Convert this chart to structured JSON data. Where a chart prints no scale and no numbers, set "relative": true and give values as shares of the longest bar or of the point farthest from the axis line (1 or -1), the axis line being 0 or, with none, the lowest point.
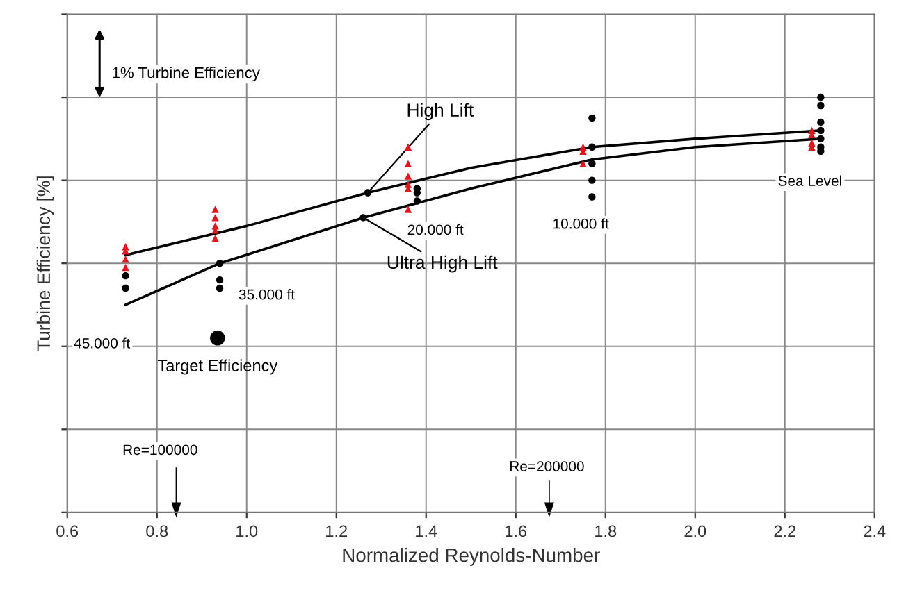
{
  "chart_data": {
    "type": "scatter",
    "relative": true,
    "xlabel": "Normalized Reynolds-Number",
    "ylabel": "Turbine Efficiency [%]",
    "xlim": [
      0.6,
      2.4
    ],
    "xticks": [
      {
        "value": 0.6,
        "label": "0.6"
      },
      {
        "value": 0.8,
        "label": "0.8"
      },
      {
        "value": 1.0,
        "label": "1.0"
      },
      {
        "value": 1.2,
        "label": "1.2"
      },
      {
        "value": 1.4,
        "label": "1.4"
      },
      {
        "value": 1.6,
        "label": "1.6"
      },
      {
        "value": 1.8,
        "label": "1.8"
      },
      {
        "value": 2.0,
        "label": "2.0"
      },
      {
        "value": 2.2,
        "label": "2.2"
      },
      {
        "value": 2.4,
        "label": "2.4"
      }
    ],
    "grid": true,
    "tick_labels": "x",
    "series": [
      {
        "type": "line",
        "name": "High Lift",
        "color": "#000000",
        "marker": "none",
        "x": [
          0.73,
          1.0,
          1.27,
          1.5,
          1.77,
          2.0,
          2.28
        ],
        "values": [
          0.62,
          0.69,
          0.77,
          0.83,
          0.88,
          0.9,
          0.92
        ]
      },
      {
        "type": "line",
        "name": "Ultra High Lift",
        "color": "#000000",
        "marker": "none",
        "x": [
          0.73,
          0.94,
          1.26,
          1.5,
          1.77,
          2.0,
          2.28
        ],
        "values": [
          0.5,
          0.6,
          0.71,
          0.78,
          0.85,
          0.88,
          0.9
        ]
      },
      {
        "color": "#e8141b",
        "marker": "triangle",
        "x": [
          0.73,
          0.73,
          0.73,
          0.73,
          0.93,
          0.93,
          0.93,
          0.93,
          0.93,
          1.36,
          1.36,
          1.36,
          1.36,
          1.36,
          1.36,
          1.75,
          1.75,
          1.75,
          2.26,
          2.26,
          2.26,
          2.26
        ],
        "values": [
          0.64,
          0.63,
          0.61,
          0.59,
          0.73,
          0.71,
          0.69,
          0.68,
          0.66,
          0.88,
          0.84,
          0.81,
          0.79,
          0.78,
          0.73,
          0.88,
          0.87,
          0.84,
          0.92,
          0.91,
          0.89,
          0.88
        ]
      },
      {
        "color": "#000000",
        "marker": "circle",
        "x": [
          0.73,
          0.73,
          0.94,
          0.94,
          0.94,
          1.27,
          1.26,
          1.38,
          1.38,
          1.38,
          1.77,
          1.77,
          1.77,
          1.77,
          1.77,
          2.28,
          2.28,
          2.28,
          2.28,
          2.28,
          2.28,
          2.28
        ],
        "values": [
          0.57,
          0.54,
          0.6,
          0.56,
          0.54,
          0.77,
          0.71,
          0.78,
          0.77,
          0.75,
          0.95,
          0.88,
          0.84,
          0.8,
          0.76,
          1.0,
          0.98,
          0.94,
          0.92,
          0.9,
          0.88,
          0.87
        ]
      },
      {
        "name": "Target Efficiency",
        "color": "#000000",
        "marker": "circle",
        "x": [
          0.935
        ],
        "values": [
          0.42
        ]
      }
    ],
    "annotations": [
      "1% Turbine Efficiency",
      "45.000 ft",
      "35.000 ft",
      "20.000 ft",
      "10.000 ft",
      "Sea Level",
      "Re=100000",
      "Re=200000"
    ]
  }
}
